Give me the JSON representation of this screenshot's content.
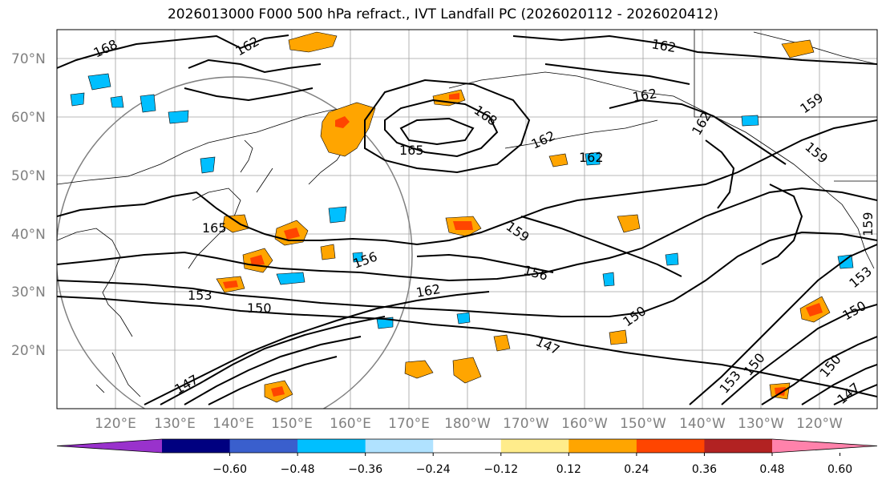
{
  "title": "2026013000 F000 500 hPa refract., IVT Landfall PC (2026020112 - 2026020412)",
  "lat_labels": [
    "70°N",
    "60°N",
    "50°N",
    "40°N",
    "30°N",
    "20°N"
  ],
  "lon_labels": [
    "120°E",
    "130°E",
    "140°E",
    "150°E",
    "160°E",
    "170°E",
    "180°W",
    "170°W",
    "160°W",
    "150°W",
    "140°W",
    "130°W",
    "120°W"
  ],
  "contour_labels": [
    "168",
    "162",
    "162",
    "162",
    "159",
    "168",
    "165",
    "162",
    "162",
    "159",
    "162",
    "165",
    "159",
    "156",
    "156",
    "153",
    "150",
    "162",
    "147",
    "150",
    "147",
    "153",
    "150",
    "150",
    "153",
    "150",
    "147",
    "159"
  ],
  "colorbar": {
    "tick_labels": [
      "−0.60",
      "−0.48",
      "−0.36",
      "−0.24",
      "−0.12",
      "0.12",
      "0.24",
      "0.36",
      "0.48",
      "0.60"
    ],
    "colors": [
      "#9932cc",
      "#000080",
      "#3a5fcd",
      "#00bfff",
      "#b0e2ff",
      "#ffffff",
      "#ffec8b",
      "#ffa500",
      "#ff4500",
      "#b22222",
      "#ff82ab"
    ]
  }
}
